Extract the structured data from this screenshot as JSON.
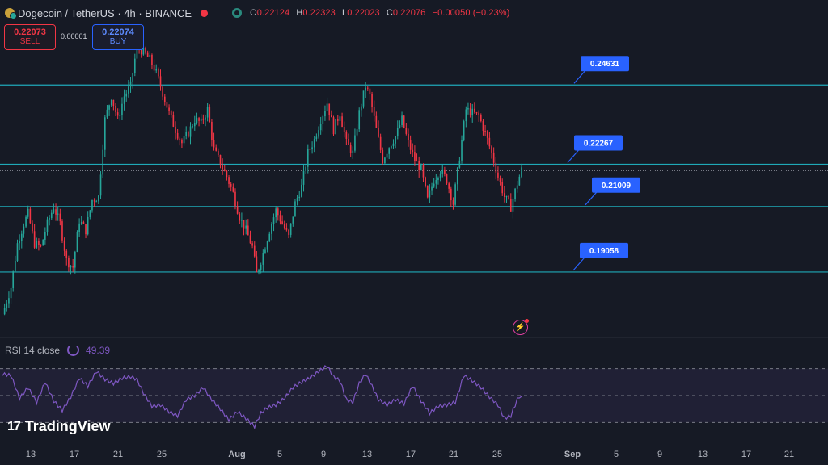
{
  "header": {
    "title": "Dogecoin / TetherUS · 4h · BINANCE",
    "ohlc": {
      "o_label": "O",
      "o": "0.22124",
      "h_label": "H",
      "h": "0.22323",
      "l_label": "L",
      "l": "0.22023",
      "c_label": "C",
      "c": "0.22076",
      "change": "−0.00050 (−0.23%)"
    }
  },
  "trade": {
    "sell_price": "0.22073",
    "sell_label": "SELL",
    "spread": "0.00001",
    "buy_price": "0.22074",
    "buy_label": "BUY"
  },
  "rsi": {
    "label": "RSI 14 close",
    "value": "49.39"
  },
  "branding": {
    "name": "TradingView"
  },
  "colors": {
    "background": "#161a25",
    "up": "#26a69a",
    "down": "#f23645",
    "level_line": "#1fa9b8",
    "callout": "#2962ff",
    "rsi_line": "#7e57c2"
  },
  "chart_data": {
    "type": "candlestick",
    "x_tick_labels": [
      "13",
      "17",
      "21",
      "25",
      "Aug",
      "5",
      "9",
      "13",
      "17",
      "21",
      "25",
      "Sep",
      "5",
      "9",
      "13",
      "17",
      "21"
    ],
    "y_range": [
      0.173,
      0.262
    ],
    "grid": false,
    "price_levels": [
      {
        "value": 0.24631,
        "label": "0.24631"
      },
      {
        "value": 0.22267,
        "label": "0.22267"
      },
      {
        "value": 0.21009,
        "label": "0.21009"
      },
      {
        "value": 0.19058,
        "label": "0.19058"
      }
    ],
    "current_price": 0.22076,
    "price_path": [
      [
        0,
        0.178
      ],
      [
        4,
        0.186
      ],
      [
        7,
        0.199
      ],
      [
        10,
        0.205
      ],
      [
        12,
        0.208
      ],
      [
        15,
        0.199
      ],
      [
        18,
        0.198
      ],
      [
        21,
        0.205
      ],
      [
        24,
        0.21
      ],
      [
        27,
        0.205
      ],
      [
        30,
        0.194
      ],
      [
        33,
        0.192
      ],
      [
        36,
        0.206
      ],
      [
        39,
        0.203
      ],
      [
        42,
        0.212
      ],
      [
        45,
        0.213
      ],
      [
        48,
        0.236
      ],
      [
        51,
        0.243
      ],
      [
        54,
        0.236
      ],
      [
        57,
        0.243
      ],
      [
        60,
        0.246
      ],
      [
        63,
        0.258
      ],
      [
        66,
        0.256
      ],
      [
        69,
        0.254
      ],
      [
        72,
        0.25
      ],
      [
        75,
        0.244
      ],
      [
        78,
        0.238
      ],
      [
        81,
        0.233
      ],
      [
        84,
        0.229
      ],
      [
        87,
        0.232
      ],
      [
        90,
        0.236
      ],
      [
        93,
        0.235
      ],
      [
        96,
        0.239
      ],
      [
        99,
        0.227
      ],
      [
        102,
        0.223
      ],
      [
        105,
        0.219
      ],
      [
        108,
        0.214
      ],
      [
        111,
        0.207
      ],
      [
        114,
        0.203
      ],
      [
        117,
        0.198
      ],
      [
        119,
        0.19
      ],
      [
        122,
        0.196
      ],
      [
        125,
        0.203
      ],
      [
        128,
        0.209
      ],
      [
        131,
        0.205
      ],
      [
        134,
        0.201
      ],
      [
        137,
        0.211
      ],
      [
        140,
        0.216
      ],
      [
        143,
        0.226
      ],
      [
        146,
        0.23
      ],
      [
        149,
        0.236
      ],
      [
        152,
        0.241
      ],
      [
        155,
        0.233
      ],
      [
        158,
        0.238
      ],
      [
        161,
        0.229
      ],
      [
        164,
        0.226
      ],
      [
        167,
        0.238
      ],
      [
        170,
        0.246
      ],
      [
        172,
        0.243
      ],
      [
        175,
        0.233
      ],
      [
        178,
        0.224
      ],
      [
        181,
        0.228
      ],
      [
        184,
        0.231
      ],
      [
        187,
        0.236
      ],
      [
        190,
        0.229
      ],
      [
        193,
        0.224
      ],
      [
        196,
        0.221
      ],
      [
        199,
        0.212
      ],
      [
        202,
        0.218
      ],
      [
        205,
        0.221
      ],
      [
        208,
        0.218
      ],
      [
        211,
        0.211
      ],
      [
        214,
        0.225
      ],
      [
        217,
        0.239
      ],
      [
        220,
        0.238
      ],
      [
        223,
        0.237
      ],
      [
        226,
        0.232
      ],
      [
        229,
        0.226
      ],
      [
        232,
        0.219
      ],
      [
        235,
        0.213
      ],
      [
        238,
        0.21
      ],
      [
        241,
        0.217
      ],
      [
        243,
        0.221
      ]
    ],
    "rsi_range": [
      20,
      80
    ],
    "rsi_levels": [
      70,
      50,
      30
    ],
    "rsi_path": [
      [
        0,
        66
      ],
      [
        4,
        65
      ],
      [
        8,
        48
      ],
      [
        12,
        56
      ],
      [
        16,
        45
      ],
      [
        20,
        60
      ],
      [
        24,
        46
      ],
      [
        28,
        39
      ],
      [
        32,
        49
      ],
      [
        36,
        63
      ],
      [
        40,
        57
      ],
      [
        44,
        68
      ],
      [
        48,
        62
      ],
      [
        52,
        59
      ],
      [
        56,
        63
      ],
      [
        60,
        64
      ],
      [
        63,
        62
      ],
      [
        66,
        52
      ],
      [
        70,
        42
      ],
      [
        74,
        43
      ],
      [
        78,
        38
      ],
      [
        82,
        35
      ],
      [
        86,
        47
      ],
      [
        90,
        50
      ],
      [
        94,
        56
      ],
      [
        98,
        47
      ],
      [
        102,
        40
      ],
      [
        106,
        32
      ],
      [
        110,
        38
      ],
      [
        114,
        33
      ],
      [
        118,
        27
      ],
      [
        121,
        37
      ],
      [
        124,
        41
      ],
      [
        128,
        43
      ],
      [
        132,
        48
      ],
      [
        136,
        56
      ],
      [
        140,
        60
      ],
      [
        144,
        63
      ],
      [
        148,
        68
      ],
      [
        152,
        72
      ],
      [
        155,
        64
      ],
      [
        158,
        61
      ],
      [
        161,
        47
      ],
      [
        164,
        45
      ],
      [
        167,
        59
      ],
      [
        170,
        66
      ],
      [
        173,
        57
      ],
      [
        176,
        47
      ],
      [
        180,
        43
      ],
      [
        184,
        47
      ],
      [
        188,
        44
      ],
      [
        192,
        57
      ],
      [
        196,
        46
      ],
      [
        200,
        37
      ],
      [
        204,
        42
      ],
      [
        208,
        43
      ],
      [
        212,
        45
      ],
      [
        216,
        65
      ],
      [
        220,
        61
      ],
      [
        224,
        56
      ],
      [
        228,
        49
      ],
      [
        232,
        43
      ],
      [
        235,
        33
      ],
      [
        238,
        35
      ],
      [
        241,
        47
      ],
      [
        243,
        49.39
      ]
    ],
    "rsi_value": 49.39
  }
}
